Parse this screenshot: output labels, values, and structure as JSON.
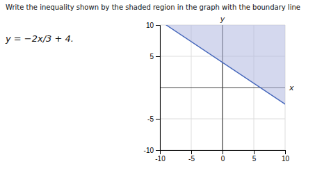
{
  "chart_data": {
    "type": "line",
    "title": "Write the inequality shown by the shaded region in the graph with the boundary line",
    "subtitle": "y = −2x/3 + 4.",
    "xlabel": "x",
    "ylabel": "y",
    "xlim": [
      -10,
      10
    ],
    "ylim": [
      -10,
      10
    ],
    "xticks": [
      -10,
      -5,
      0,
      5,
      10
    ],
    "yticks": [
      -10,
      -5,
      5,
      10
    ],
    "grid": true,
    "series": [
      {
        "type": "area",
        "color": "#b0b8e0",
        "x": [
          -9,
          10,
          10
        ],
        "values": [
          10,
          10,
          -2.6667
        ]
      },
      {
        "type": "line",
        "color": "#4466bb",
        "x": [
          -9,
          10
        ],
        "values": [
          10,
          -2.6667
        ]
      }
    ]
  }
}
